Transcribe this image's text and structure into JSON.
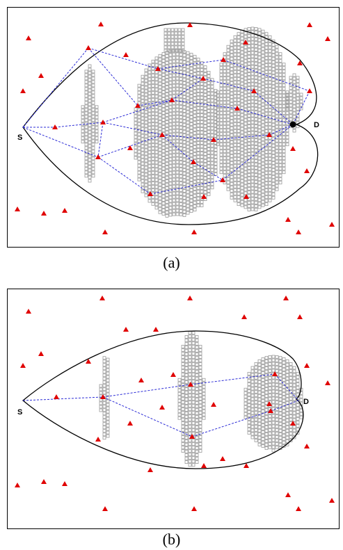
{
  "panels": [
    {
      "id": "a",
      "caption": "(a)",
      "source_label": "S",
      "dest_label": "D",
      "colors": {
        "node": "#e00000",
        "path": "#2b2bd6",
        "cell": "#9a9a9a",
        "boundary": "#000000"
      }
    },
    {
      "id": "b",
      "caption": "(b)",
      "source_label": "S",
      "dest_label": "D",
      "colors": {
        "node": "#e00000",
        "path": "#2b2bd6",
        "cell": "#9a9a9a",
        "boundary": "#000000"
      }
    }
  ]
}
